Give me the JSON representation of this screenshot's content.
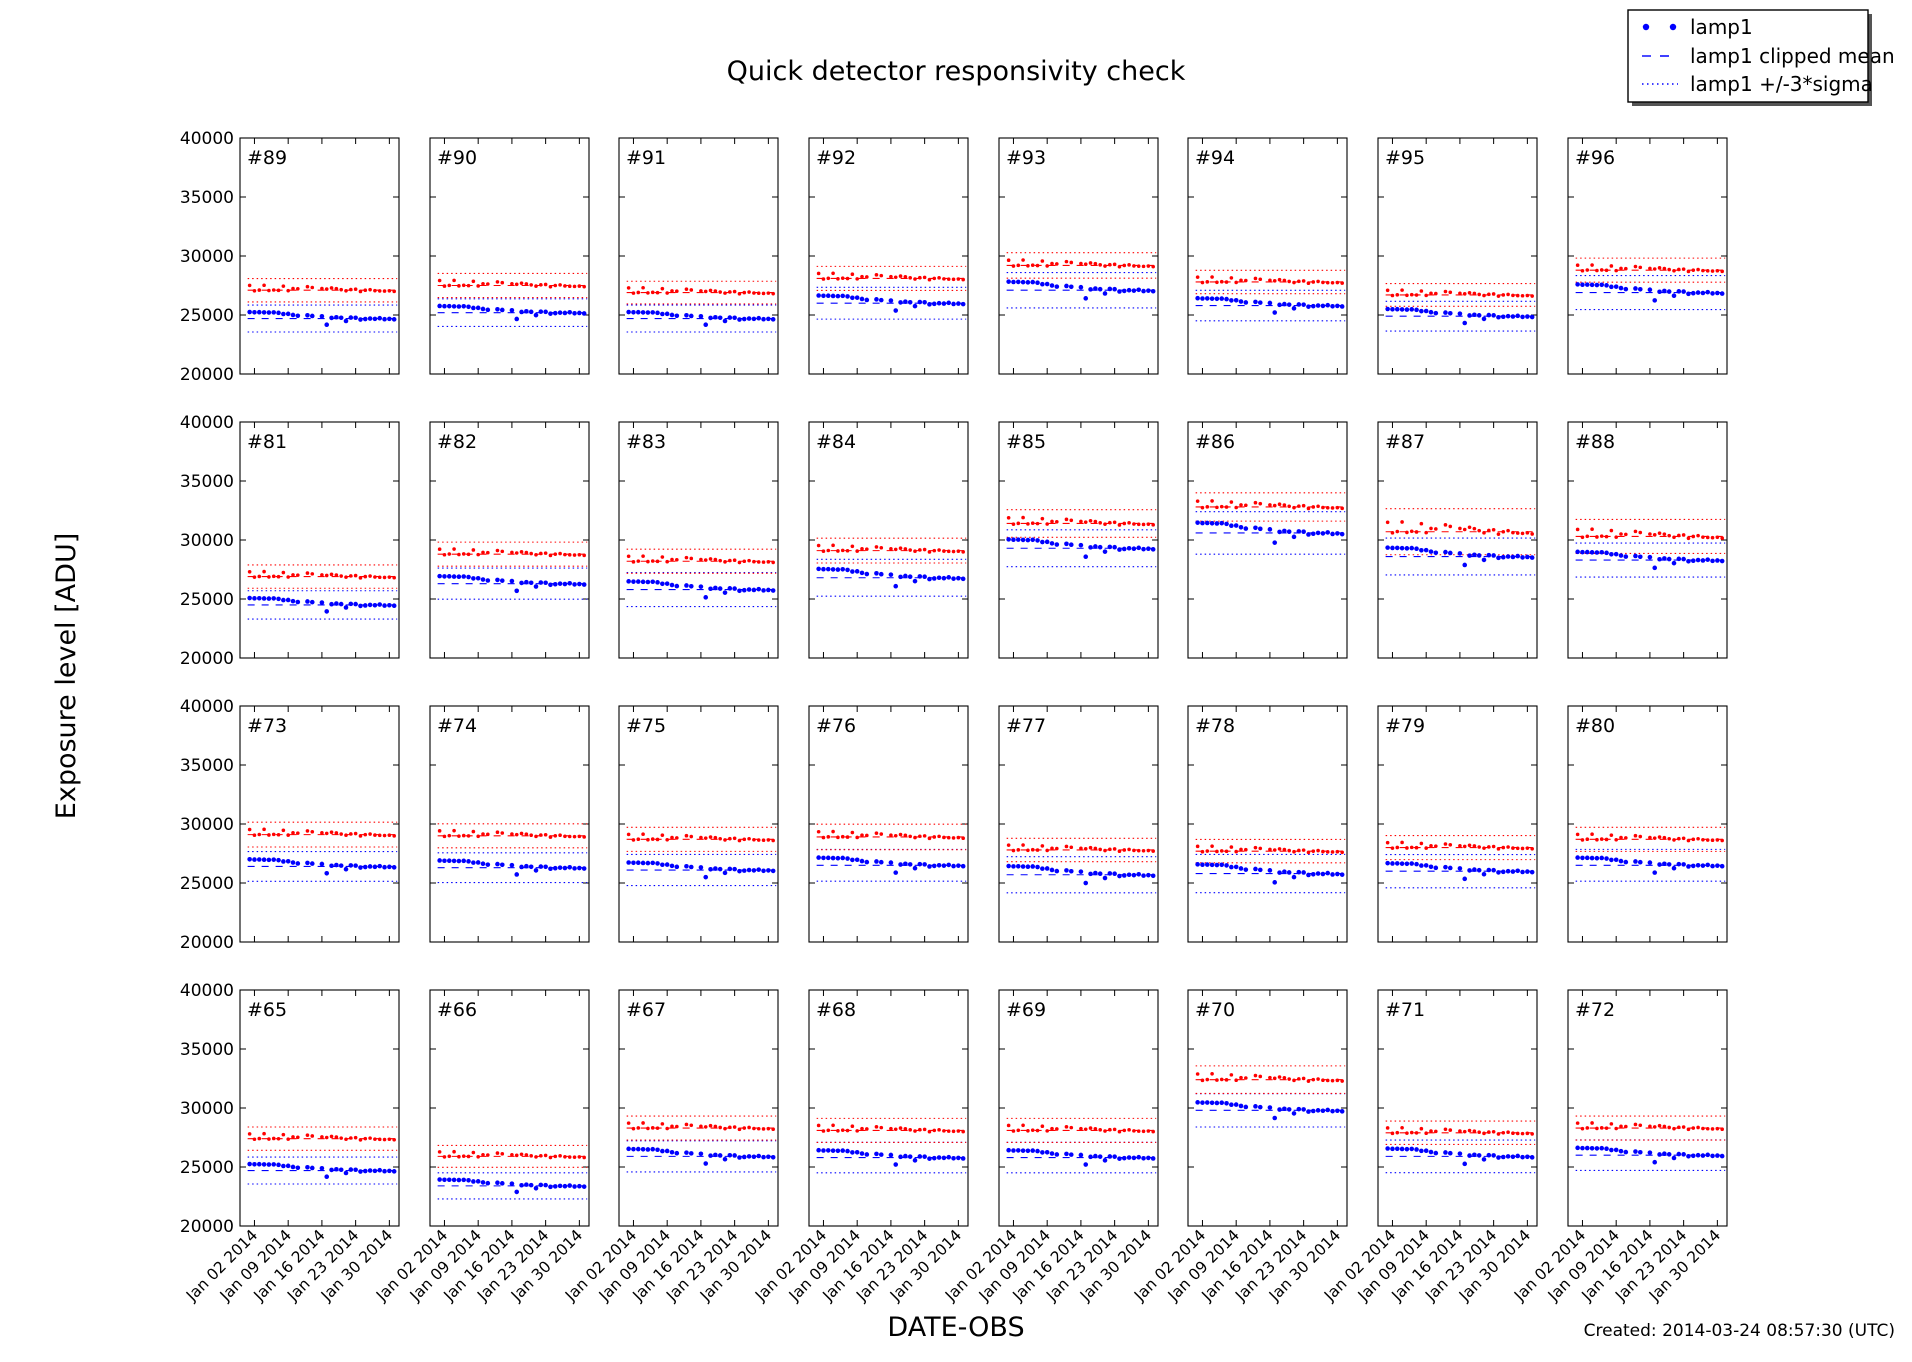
{
  "chart_data": {
    "type": "scatter",
    "title": "Quick detector responsivity check",
    "xlabel": "DATE-OBS",
    "ylabel": "Exposure level [ADU]",
    "created": "Created: 2014-03-24 08:57:30 (UTC)",
    "ylim": [
      20000,
      40000
    ],
    "yticks": [
      20000,
      25000,
      30000,
      35000,
      40000
    ],
    "ytick_labels": [
      "20000",
      "25000",
      "30000",
      "35000",
      "40000"
    ],
    "xlim_days": [
      -2,
      31
    ],
    "xticks_days": [
      1,
      8,
      15,
      22,
      29
    ],
    "xtick_labels": [
      "Jan 02 2014",
      "Jan 09 2014",
      "Jan 16 2014",
      "Jan 23 2014",
      "Jan 30 2014"
    ],
    "legend": {
      "position": "top-right",
      "entries": [
        {
          "label": "lamp1",
          "style": "points",
          "color": "#0000ff"
        },
        {
          "label": "lamp1 clipped mean",
          "style": "dashed",
          "color": "#0000ff"
        },
        {
          "label": "lamp1 +/-3*sigma",
          "style": "dotted",
          "color": "#0000ff"
        }
      ]
    },
    "series_colors": {
      "lamp1": "#0000ff",
      "lamp2": "#ff0000"
    },
    "observation_days": [
      0,
      1,
      2,
      3,
      4,
      5,
      6,
      7,
      8,
      9,
      10,
      12,
      13,
      15,
      16,
      17,
      18,
      19,
      20,
      21,
      22,
      23,
      24,
      25,
      26,
      27,
      28,
      29,
      30
    ],
    "blue_shape": [
      1.0,
      0.96,
      0.97,
      0.94,
      0.92,
      0.95,
      0.88,
      0.7,
      0.72,
      0.55,
      0.42,
      0.5,
      0.4,
      0.35,
      -0.95,
      0.1,
      0.2,
      0.12,
      -0.38,
      0.15,
      0.12,
      -0.15,
      -0.08,
      0.0,
      -0.05,
      0.05,
      -0.1,
      -0.05,
      -0.12
    ],
    "red_shape": [
      0.85,
      -0.1,
      0.02,
      0.88,
      -0.06,
      0.04,
      -0.02,
      0.72,
      -0.08,
      0.3,
      0.25,
      0.62,
      0.48,
      0.3,
      0.2,
      0.4,
      0.28,
      0.1,
      -0.1,
      0.12,
      0.18,
      -0.22,
      0.0,
      0.1,
      -0.08,
      -0.12,
      -0.15,
      -0.1,
      -0.2
    ],
    "panels": [
      {
        "label": "#89",
        "blue_mean": 24700,
        "blue_sigma": 380,
        "red_mean": 27100,
        "red_sigma": 330
      },
      {
        "label": "#90",
        "blue_mean": 25200,
        "blue_sigma": 390,
        "red_mean": 27500,
        "red_sigma": 340
      },
      {
        "label": "#91",
        "blue_mean": 24700,
        "blue_sigma": 380,
        "red_mean": 26900,
        "red_sigma": 320
      },
      {
        "label": "#92",
        "blue_mean": 26000,
        "blue_sigma": 450,
        "red_mean": 28100,
        "red_sigma": 340
      },
      {
        "label": "#93",
        "blue_mean": 27100,
        "blue_sigma": 500,
        "red_mean": 29200,
        "red_sigma": 360
      },
      {
        "label": "#94",
        "blue_mean": 25800,
        "blue_sigma": 430,
        "red_mean": 27800,
        "red_sigma": 330
      },
      {
        "label": "#95",
        "blue_mean": 24900,
        "blue_sigma": 420,
        "red_mean": 26700,
        "red_sigma": 320
      },
      {
        "label": "#96",
        "blue_mean": 26900,
        "blue_sigma": 480,
        "red_mean": 28800,
        "red_sigma": 340
      },
      {
        "label": "#81",
        "blue_mean": 24500,
        "blue_sigma": 400,
        "red_mean": 26900,
        "red_sigma": 330
      },
      {
        "label": "#82",
        "blue_mean": 26300,
        "blue_sigma": 440,
        "red_mean": 28800,
        "red_sigma": 340
      },
      {
        "label": "#83",
        "blue_mean": 25800,
        "blue_sigma": 480,
        "red_mean": 28200,
        "red_sigma": 340
      },
      {
        "label": "#84",
        "blue_mean": 26800,
        "blue_sigma": 520,
        "red_mean": 29100,
        "red_sigma": 350
      },
      {
        "label": "#85",
        "blue_mean": 29300,
        "blue_sigma": 520,
        "red_mean": 31400,
        "red_sigma": 390
      },
      {
        "label": "#86",
        "blue_mean": 30600,
        "blue_sigma": 600,
        "red_mean": 32800,
        "red_sigma": 400
      },
      {
        "label": "#87",
        "blue_mean": 28600,
        "blue_sigma": 520,
        "red_mean": 30700,
        "red_sigma": 650
      },
      {
        "label": "#88",
        "blue_mean": 28300,
        "blue_sigma": 480,
        "red_mean": 30300,
        "red_sigma": 480
      },
      {
        "label": "#73",
        "blue_mean": 26400,
        "blue_sigma": 420,
        "red_mean": 29100,
        "red_sigma": 350
      },
      {
        "label": "#74",
        "blue_mean": 26300,
        "blue_sigma": 420,
        "red_mean": 29000,
        "red_sigma": 340
      },
      {
        "label": "#75",
        "blue_mean": 26100,
        "blue_sigma": 440,
        "red_mean": 28700,
        "red_sigma": 340
      },
      {
        "label": "#76",
        "blue_mean": 26500,
        "blue_sigma": 450,
        "red_mean": 28900,
        "red_sigma": 360
      },
      {
        "label": "#77",
        "blue_mean": 25700,
        "blue_sigma": 510,
        "red_mean": 27800,
        "red_sigma": 330
      },
      {
        "label": "#78",
        "blue_mean": 25800,
        "blue_sigma": 540,
        "red_mean": 27700,
        "red_sigma": 330
      },
      {
        "label": "#79",
        "blue_mean": 26000,
        "blue_sigma": 470,
        "red_mean": 28000,
        "red_sigma": 340
      },
      {
        "label": "#80",
        "blue_mean": 26500,
        "blue_sigma": 450,
        "red_mean": 28700,
        "red_sigma": 340
      },
      {
        "label": "#65",
        "blue_mean": 24700,
        "blue_sigma": 380,
        "red_mean": 27400,
        "red_sigma": 330
      },
      {
        "label": "#66",
        "blue_mean": 23400,
        "blue_sigma": 370,
        "red_mean": 25900,
        "red_sigma": 310
      },
      {
        "label": "#67",
        "blue_mean": 25900,
        "blue_sigma": 440,
        "red_mean": 28300,
        "red_sigma": 340
      },
      {
        "label": "#68",
        "blue_mean": 25800,
        "blue_sigma": 430,
        "red_mean": 28100,
        "red_sigma": 340
      },
      {
        "label": "#69",
        "blue_mean": 25800,
        "blue_sigma": 430,
        "red_mean": 28100,
        "red_sigma": 340
      },
      {
        "label": "#70",
        "blue_mean": 29800,
        "blue_sigma": 470,
        "red_mean": 32400,
        "red_sigma": 390
      },
      {
        "label": "#71",
        "blue_mean": 25900,
        "blue_sigma": 460,
        "red_mean": 27900,
        "red_sigma": 330
      },
      {
        "label": "#72",
        "blue_mean": 26000,
        "blue_sigma": 430,
        "red_mean": 28300,
        "red_sigma": 340
      }
    ]
  }
}
